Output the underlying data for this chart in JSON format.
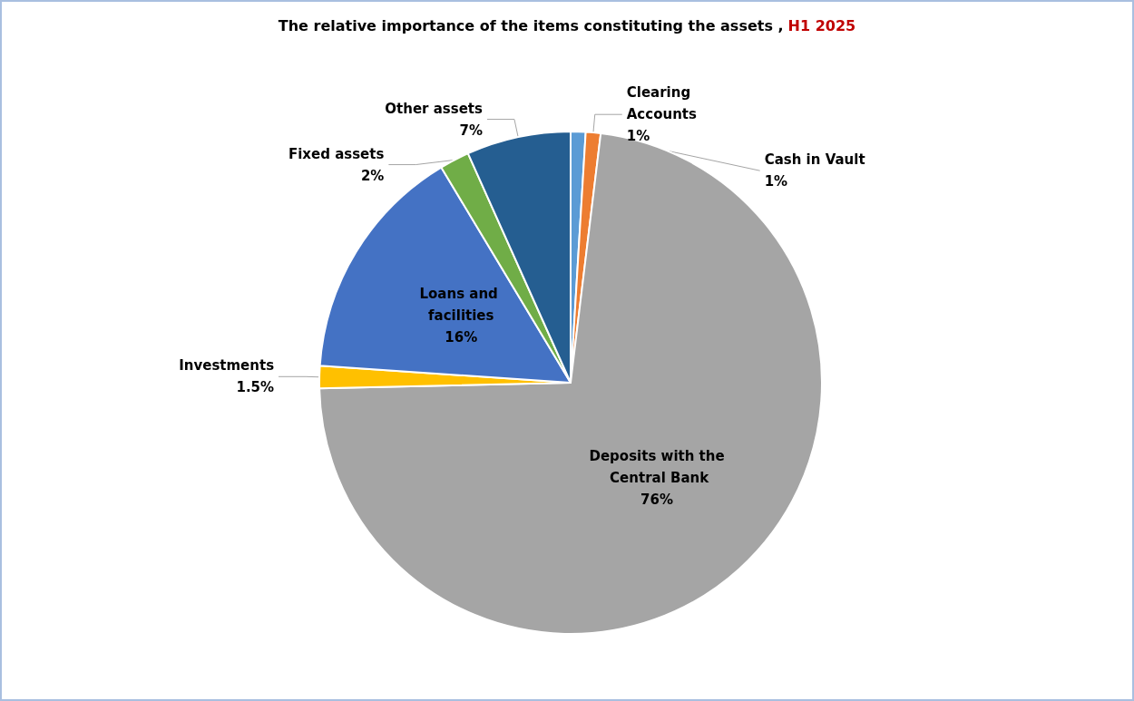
{
  "chart_data": {
    "type": "pie",
    "title": "The relative importance of the items constituting the assets ,",
    "subtitle": "H1 2025",
    "categories": [
      "Cash in Vault",
      "Clearing Accounts",
      "Deposits with the Central Bank",
      "Investments",
      "Loans and facilities",
      "Fixed assets",
      "Other assets"
    ],
    "values": [
      1,
      1,
      76,
      1.5,
      16,
      2,
      7
    ],
    "colors": [
      "#5b9bd5",
      "#ed7d31",
      "#a5a5a5",
      "#ffc000",
      "#4472c4",
      "#70ad47",
      "#255e91"
    ],
    "value_labels": [
      "1%",
      "1%",
      "76%",
      "1.5%",
      "16%",
      "2%",
      "7%"
    ],
    "legend": false
  }
}
